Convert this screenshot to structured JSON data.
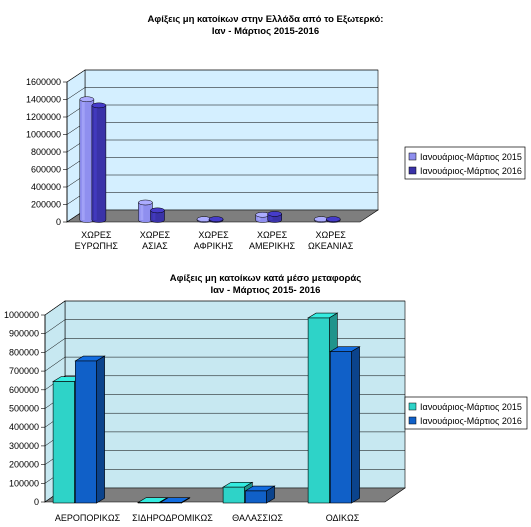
{
  "chart_data": [
    {
      "type": "bar",
      "title_lines": [
        "Αφίξεις μη κατοίκων στην Ελλάδα από το Εξωτερκό:",
        "Ιαν - Μάρτιος  2015-2016"
      ],
      "categories": [
        [
          "ΧΩΡΕΣ",
          "ΕΥΡΩΠΗΣ"
        ],
        [
          "ΧΩΡΕΣ",
          "ΑΣΙΑΣ"
        ],
        [
          "ΧΩΡΕΣ",
          "ΑΦΡΙΚΗΣ"
        ],
        [
          "ΧΩΡΕΣ",
          "ΑΜΕΡΙΚΗΣ"
        ],
        [
          "ΧΩΡΕΣ",
          "ΩΚΕΑΝΙΑΣ"
        ]
      ],
      "series": [
        {
          "name": "Ιανουάριος-Μάρτιος 2015",
          "values": [
            1380000,
            200000,
            10000,
            60000,
            10000
          ],
          "color": "#8f8fef"
        },
        {
          "name": "Ιανουάριος-Μάρτιος 2016",
          "values": [
            1310000,
            110000,
            10000,
            70000,
            10000
          ],
          "color": "#3a32a8"
        }
      ],
      "ylim": [
        0,
        1600000
      ],
      "yticks": [
        "0",
        "200000",
        "400000",
        "600000",
        "800000",
        "1000000",
        "1200000",
        "1400000",
        "1600000"
      ],
      "bar_shape": "cylinder",
      "wall_color": "#d4efff",
      "floor_color": "#7e7e7e",
      "grid": true,
      "legend": "right"
    },
    {
      "type": "bar",
      "title_lines": [
        "Αφίξεις μη κατοίκων κατά μέσο μεταφοράς",
        "Ιαν - Μάρτιος 2015- 2016"
      ],
      "categories": [
        [
          "ΑΕΡΟΠΟΡΙΚΩΣ"
        ],
        [
          "ΣΙΔΗΡΟΔΡΟΜΙΚΩΣ"
        ],
        [
          "ΘΑΛΑΣΣΙΩΣ"
        ],
        [
          "ΟΔΙΚΩΣ"
        ]
      ],
      "series": [
        {
          "name": "Ιανουάριος-Μάρτιος 2015",
          "values": [
            650000,
            3000,
            85000,
            990000
          ],
          "color": "#2ed3c8"
        },
        {
          "name": "Ιανουάριος-Μάρτιος 2016",
          "values": [
            760000,
            3000,
            65000,
            810000
          ],
          "color": "#1060c8"
        }
      ],
      "ylim": [
        0,
        1000000
      ],
      "yticks": [
        "0",
        "100000",
        "200000",
        "300000",
        "400000",
        "500000",
        "600000",
        "700000",
        "800000",
        "900000",
        "1000000"
      ],
      "bar_shape": "box",
      "wall_color": "#c7e8f1",
      "floor_color": "#7e7e7e",
      "grid": true,
      "legend": "right"
    }
  ]
}
